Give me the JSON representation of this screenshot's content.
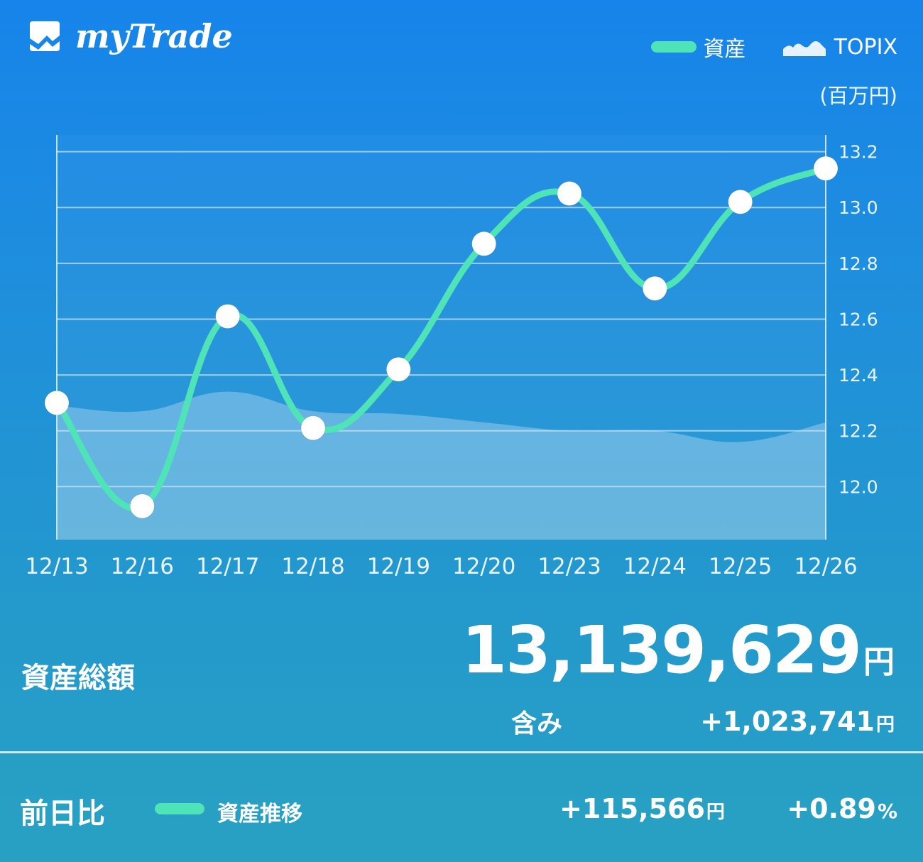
{
  "app": {
    "name": "myTrade",
    "logo_icon": "mytrade-logo-icon"
  },
  "legend": {
    "asset_label": "資産",
    "topix_label": "TOPIX",
    "asset_color": "#4fe3b8"
  },
  "unit_label": "(百万円)",
  "chart_data": {
    "type": "line",
    "categories": [
      "12/13",
      "12/16",
      "12/17",
      "12/18",
      "12/19",
      "12/20",
      "12/23",
      "12/24",
      "12/25",
      "12/26"
    ],
    "series": [
      {
        "name": "資産",
        "values": [
          12.3,
          11.93,
          12.61,
          12.21,
          12.42,
          12.87,
          13.05,
          12.71,
          13.02,
          13.14
        ]
      },
      {
        "name": "TOPIX",
        "values": [
          12.29,
          12.27,
          12.34,
          12.27,
          12.26,
          12.23,
          12.2,
          12.2,
          12.16,
          12.23
        ]
      }
    ],
    "y_ticks": [
      "13.2",
      "13.0",
      "12.8",
      "12.6",
      "12.4",
      "12.2",
      "12.0"
    ],
    "ylim": [
      11.81,
      13.26
    ],
    "grid": true,
    "legend_position": "top-right"
  },
  "summary": {
    "total_label": "資産総額",
    "total_value": "13,139,629",
    "yen": "円",
    "includes_label": "含み",
    "includes_value": "+1,023,741"
  },
  "footer": {
    "label": "前日比",
    "series_label": "資産推移",
    "delta_value": "+115,566",
    "delta_pct": "+0.89",
    "pct_sign": "%"
  }
}
